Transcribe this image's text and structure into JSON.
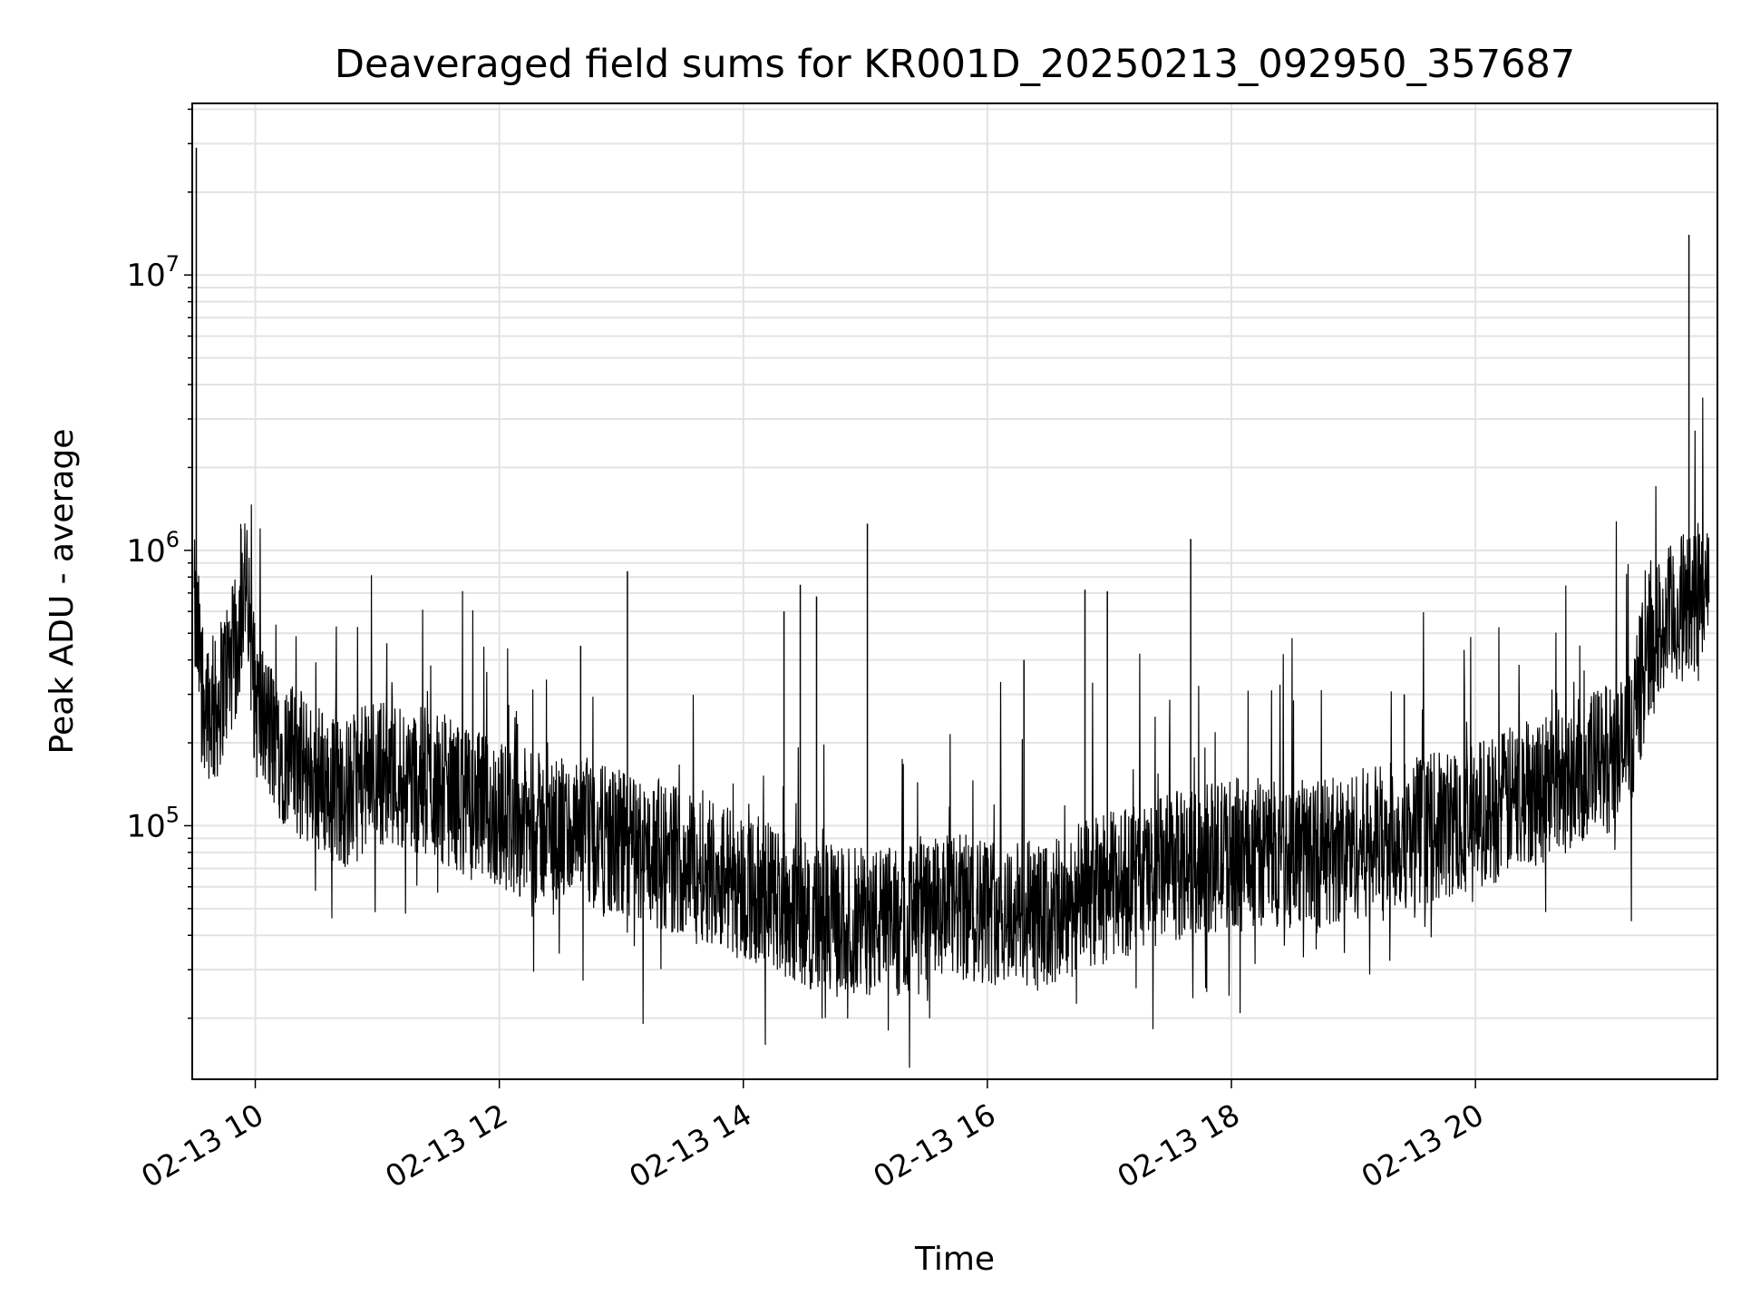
{
  "chart_data": {
    "type": "line",
    "title": "Deaveraged field sums for KR001D_20250213_092950_357687",
    "xlabel": "Time",
    "ylabel": "Peak ADU - average",
    "yscale": "log",
    "grid": true,
    "legend": "none",
    "line_color": "#000000",
    "xlim": [
      "2025-02-13 09:29",
      "2025-02-13 21:59"
    ],
    "ylim": [
      12000,
      42000000
    ],
    "x_ticks": [
      {
        "t": "2025-02-13 10:00",
        "label": "02-13 10"
      },
      {
        "t": "2025-02-13 12:00",
        "label": "02-13 12"
      },
      {
        "t": "2025-02-13 14:00",
        "label": "02-13 14"
      },
      {
        "t": "2025-02-13 16:00",
        "label": "02-13 16"
      },
      {
        "t": "2025-02-13 18:00",
        "label": "02-13 18"
      },
      {
        "t": "2025-02-13 20:00",
        "label": "02-13 20"
      }
    ],
    "y_ticks": [
      {
        "value": 100000,
        "base": "10",
        "exp": "5"
      },
      {
        "value": 1000000,
        "base": "10",
        "exp": "6"
      },
      {
        "value": 10000000,
        "base": "10",
        "exp": "7"
      }
    ],
    "series": [
      {
        "x": [
          "2025-02-13 09:30",
          "2025-02-13 09:35",
          "2025-02-13 09:40",
          "2025-02-13 09:45",
          "2025-02-13 09:50",
          "2025-02-13 09:55",
          "2025-02-13 10:00",
          "2025-02-13 10:10",
          "2025-02-13 10:20",
          "2025-02-13 10:30",
          "2025-02-13 10:45",
          "2025-02-13 11:00",
          "2025-02-13 11:15",
          "2025-02-13 11:30",
          "2025-02-13 11:45",
          "2025-02-13 12:00",
          "2025-02-13 12:15",
          "2025-02-13 12:30",
          "2025-02-13 12:45",
          "2025-02-13 13:00",
          "2025-02-13 13:15",
          "2025-02-13 13:30",
          "2025-02-13 13:45",
          "2025-02-13 14:00",
          "2025-02-13 14:15",
          "2025-02-13 14:30",
          "2025-02-13 14:45",
          "2025-02-13 15:00",
          "2025-02-13 15:15",
          "2025-02-13 15:30",
          "2025-02-13 15:45",
          "2025-02-13 16:00",
          "2025-02-13 16:15",
          "2025-02-13 16:30",
          "2025-02-13 16:45",
          "2025-02-13 17:00",
          "2025-02-13 17:15",
          "2025-02-13 17:30",
          "2025-02-13 17:45",
          "2025-02-13 18:00",
          "2025-02-13 18:15",
          "2025-02-13 18:30",
          "2025-02-13 18:45",
          "2025-02-13 19:00",
          "2025-02-13 19:15",
          "2025-02-13 19:30",
          "2025-02-13 19:45",
          "2025-02-13 20:00",
          "2025-02-13 20:15",
          "2025-02-13 20:30",
          "2025-02-13 20:45",
          "2025-02-13 21:00",
          "2025-02-13 21:15",
          "2025-02-13 21:25",
          "2025-02-13 21:35",
          "2025-02-13 21:45",
          "2025-02-13 21:55"
        ],
        "y": [
          600000,
          300000,
          250000,
          350000,
          420000,
          800000,
          280000,
          200000,
          170000,
          150000,
          130000,
          160000,
          150000,
          140000,
          120000,
          110000,
          100000,
          95000,
          90000,
          85000,
          80000,
          75000,
          70000,
          60000,
          55000,
          48000,
          45000,
          45000,
          45000,
          48000,
          50000,
          50000,
          48000,
          45000,
          55000,
          60000,
          65000,
          70000,
          75000,
          80000,
          80000,
          80000,
          80000,
          85000,
          90000,
          95000,
          100000,
          110000,
          120000,
          140000,
          150000,
          170000,
          190000,
          450000,
          550000,
          650000,
          700000
        ]
      }
    ],
    "spikes": [
      {
        "t": "2025-02-13 09:31",
        "value": 29000000
      },
      {
        "t": "2025-02-13 09:53",
        "value": 1200000
      },
      {
        "t": "2025-02-13 12:40",
        "value": 450000
      },
      {
        "t": "2025-02-13 13:03",
        "value": 840000
      },
      {
        "t": "2025-02-13 14:20",
        "value": 600000
      },
      {
        "t": "2025-02-13 14:28",
        "value": 750000
      },
      {
        "t": "2025-02-13 14:36",
        "value": 680000
      },
      {
        "t": "2025-02-13 15:01",
        "value": 1250000
      },
      {
        "t": "2025-02-13 16:18",
        "value": 400000
      },
      {
        "t": "2025-02-13 16:48",
        "value": 720000
      },
      {
        "t": "2025-02-13 16:59",
        "value": 710000
      },
      {
        "t": "2025-02-13 17:40",
        "value": 1100000
      },
      {
        "t": "2025-02-13 19:25",
        "value": 300000
      },
      {
        "t": "2025-02-13 21:45",
        "value": 14000000
      }
    ]
  }
}
